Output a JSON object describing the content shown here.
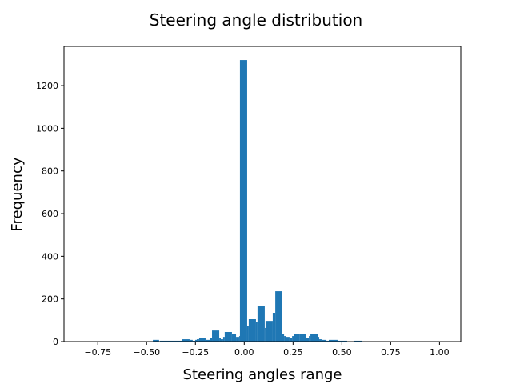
{
  "chart_data": {
    "type": "bar",
    "title": "Steering angle distribution",
    "xlabel": "Steering angles range",
    "ylabel": "Frequency",
    "xlim": [
      -0.923,
      1.109
    ],
    "ylim": [
      0,
      1384
    ],
    "xticks": [
      -0.75,
      -0.5,
      -0.25,
      0.0,
      0.25,
      0.5,
      0.75,
      1.0
    ],
    "xtick_labels": [
      "−0.75",
      "−0.50",
      "−0.25",
      "0.00",
      "0.25",
      "0.50",
      "0.75",
      "1.00"
    ],
    "yticks": [
      0,
      200,
      400,
      600,
      800,
      1000,
      1200
    ],
    "ytick_labels": [
      "0",
      "200",
      "400",
      "600",
      "800",
      "1000",
      "1200"
    ],
    "grid": false,
    "color": "#1f77b4",
    "bins": [
      [
        -0.468,
        -0.436,
        8
      ],
      [
        -0.432,
        -0.317,
        4
      ],
      [
        -0.317,
        -0.28,
        11
      ],
      [
        -0.28,
        -0.264,
        8
      ],
      [
        -0.264,
        -0.251,
        4
      ],
      [
        -0.251,
        -0.243,
        8
      ],
      [
        -0.243,
        -0.231,
        11
      ],
      [
        -0.231,
        -0.198,
        15
      ],
      [
        -0.198,
        -0.194,
        4
      ],
      [
        -0.194,
        -0.177,
        8
      ],
      [
        -0.177,
        -0.165,
        15
      ],
      [
        -0.165,
        -0.128,
        52
      ],
      [
        -0.128,
        -0.12,
        15
      ],
      [
        -0.12,
        -0.108,
        11
      ],
      [
        -0.108,
        -0.1,
        22
      ],
      [
        -0.1,
        -0.063,
        45
      ],
      [
        -0.063,
        -0.042,
        37
      ],
      [
        -0.042,
        -0.026,
        22
      ],
      [
        -0.026,
        -0.022,
        26
      ],
      [
        -0.022,
        0.015,
        1320
      ],
      [
        0.015,
        0.023,
        75
      ],
      [
        0.023,
        0.06,
        105
      ],
      [
        0.06,
        0.068,
        90
      ],
      [
        0.068,
        0.105,
        165
      ],
      [
        0.105,
        0.109,
        64
      ],
      [
        0.109,
        0.146,
        97
      ],
      [
        0.146,
        0.159,
        135
      ],
      [
        0.159,
        0.195,
        236
      ],
      [
        0.195,
        0.204,
        37
      ],
      [
        0.204,
        0.212,
        26
      ],
      [
        0.212,
        0.232,
        22
      ],
      [
        0.232,
        0.245,
        15
      ],
      [
        0.245,
        0.253,
        26
      ],
      [
        0.253,
        0.282,
        34
      ],
      [
        0.282,
        0.318,
        37
      ],
      [
        0.318,
        0.331,
        15
      ],
      [
        0.331,
        0.339,
        26
      ],
      [
        0.339,
        0.376,
        34
      ],
      [
        0.376,
        0.384,
        22
      ],
      [
        0.384,
        0.396,
        11
      ],
      [
        0.396,
        0.421,
        8
      ],
      [
        0.421,
        0.433,
        4
      ],
      [
        0.433,
        0.478,
        8
      ],
      [
        0.478,
        0.527,
        4
      ],
      [
        0.56,
        0.605,
        4
      ]
    ]
  }
}
